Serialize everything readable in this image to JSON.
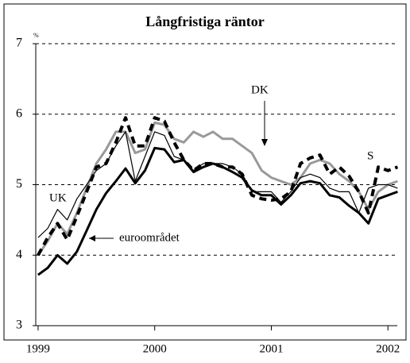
{
  "chart_data": {
    "type": "line",
    "title": "Långfristiga räntor",
    "y_unit": "%",
    "annotations": [
      "UK",
      "euroområdet",
      "DK",
      "S"
    ],
    "x": [
      1999,
      1999.083,
      1999.167,
      1999.25,
      1999.333,
      1999.417,
      1999.5,
      1999.583,
      1999.667,
      1999.75,
      1999.833,
      1999.917,
      2000,
      2000.083,
      2000.167,
      2000.25,
      2000.333,
      2000.417,
      2000.5,
      2000.583,
      2000.667,
      2000.75,
      2000.833,
      2000.917,
      2001,
      2001.083,
      2001.167,
      2001.25,
      2001.333,
      2001.417,
      2001.5,
      2001.583,
      2001.667,
      2001.75,
      2001.833,
      2001.917,
      2002,
      2002.083
    ],
    "series": [
      {
        "name": "UK",
        "color": "#000000",
        "style": "thin",
        "values": [
          4.25,
          4.38,
          4.65,
          4.5,
          4.8,
          5.0,
          5.2,
          5.3,
          5.55,
          5.75,
          5.05,
          5.4,
          5.75,
          5.7,
          5.4,
          5.35,
          5.2,
          5.3,
          5.3,
          5.3,
          5.25,
          5.15,
          4.9,
          4.9,
          4.9,
          4.75,
          4.9,
          5.1,
          5.15,
          5.1,
          4.95,
          4.9,
          4.9,
          4.6,
          4.95,
          5.0,
          5.0,
          4.95
        ]
      },
      {
        "name": "euroområdet",
        "color": "#000000",
        "style": "thick",
        "values": [
          3.72,
          3.82,
          4.0,
          3.88,
          4.05,
          4.35,
          4.65,
          4.88,
          5.05,
          5.23,
          5.02,
          5.2,
          5.52,
          5.5,
          5.32,
          5.35,
          5.18,
          5.25,
          5.3,
          5.25,
          5.18,
          5.1,
          4.92,
          4.85,
          4.85,
          4.72,
          4.85,
          5.02,
          5.05,
          5.02,
          4.85,
          4.82,
          4.7,
          4.6,
          4.45,
          4.8,
          4.85,
          4.9
        ]
      },
      {
        "name": "DK",
        "color": "#999999",
        "style": "thick",
        "values": [
          4.0,
          4.2,
          4.45,
          4.3,
          4.6,
          4.95,
          5.3,
          5.5,
          5.75,
          5.75,
          5.45,
          5.5,
          5.88,
          5.85,
          5.65,
          5.6,
          5.75,
          5.68,
          5.75,
          5.65,
          5.65,
          5.55,
          5.45,
          5.2,
          5.1,
          5.05,
          5.0,
          5.1,
          5.3,
          5.35,
          5.3,
          5.15,
          5.05,
          4.9,
          4.65,
          4.9,
          5.0,
          5.05
        ]
      },
      {
        "name": "S",
        "color": "#000000",
        "style": "dashed",
        "values": [
          4.0,
          4.25,
          4.45,
          4.22,
          4.55,
          4.9,
          5.25,
          5.3,
          5.6,
          5.95,
          5.55,
          5.55,
          5.95,
          5.9,
          5.6,
          5.35,
          5.2,
          5.3,
          5.3,
          5.25,
          5.25,
          5.15,
          4.85,
          4.8,
          4.78,
          4.8,
          4.9,
          5.3,
          5.38,
          5.42,
          5.15,
          5.25,
          5.12,
          4.9,
          4.6,
          5.25,
          5.2,
          5.25
        ]
      }
    ],
    "xlim": [
      1998.98,
      2002.08
    ],
    "xticks": [
      1999,
      2000,
      2001,
      2002
    ],
    "ylim": [
      3,
      7
    ],
    "yticks": [
      3,
      4,
      5,
      6,
      7
    ],
    "grid": true
  }
}
